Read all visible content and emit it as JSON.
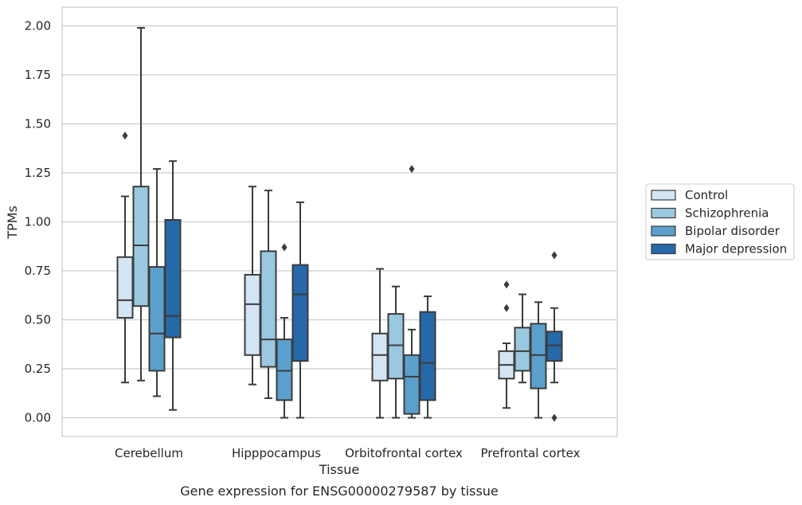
{
  "chart_data": {
    "type": "box",
    "caption": "Gene expression for ENSG00000279587 by tissue",
    "xlabel": "Tissue",
    "ylabel": "TPMs",
    "ylim": [
      -0.1,
      2.09
    ],
    "yticks": [
      "0.00",
      "0.25",
      "0.50",
      "0.75",
      "1.00",
      "1.25",
      "1.50",
      "1.75",
      "2.00"
    ],
    "grid": "horizontal",
    "legend_position": "right",
    "categories": [
      "Cerebellum",
      "Hipppocampus",
      "Orbitofrontal cortex",
      "Prefrontal cortex"
    ],
    "series": [
      {
        "name": "Control",
        "color": "#d3e4f3",
        "boxes": [
          {
            "whisker_low": 0.18,
            "q1": 0.51,
            "median": 0.6,
            "q3": 0.82,
            "whisker_high": 1.13,
            "outliers": [
              1.44
            ]
          },
          {
            "whisker_low": 0.17,
            "q1": 0.32,
            "median": 0.58,
            "q3": 0.73,
            "whisker_high": 1.18,
            "outliers": []
          },
          {
            "whisker_low": 0.0,
            "q1": 0.19,
            "median": 0.32,
            "q3": 0.43,
            "whisker_high": 0.76,
            "outliers": []
          },
          {
            "whisker_low": 0.05,
            "q1": 0.2,
            "median": 0.27,
            "q3": 0.34,
            "whisker_high": 0.38,
            "outliers": [
              0.56,
              0.68
            ]
          }
        ]
      },
      {
        "name": "Schizophrenia",
        "color": "#9ac8e0",
        "boxes": [
          {
            "whisker_low": 0.19,
            "q1": 0.57,
            "median": 0.88,
            "q3": 1.18,
            "whisker_high": 1.99,
            "outliers": []
          },
          {
            "whisker_low": 0.1,
            "q1": 0.26,
            "median": 0.4,
            "q3": 0.85,
            "whisker_high": 1.16,
            "outliers": []
          },
          {
            "whisker_low": 0.0,
            "q1": 0.2,
            "median": 0.37,
            "q3": 0.53,
            "whisker_high": 0.67,
            "outliers": []
          },
          {
            "whisker_low": 0.18,
            "q1": 0.24,
            "median": 0.34,
            "q3": 0.46,
            "whisker_high": 0.63,
            "outliers": []
          }
        ]
      },
      {
        "name": "Bipolar disorder",
        "color": "#5ba0cc",
        "boxes": [
          {
            "whisker_low": 0.11,
            "q1": 0.24,
            "median": 0.43,
            "q3": 0.77,
            "whisker_high": 1.27,
            "outliers": []
          },
          {
            "whisker_low": 0.0,
            "q1": 0.09,
            "median": 0.24,
            "q3": 0.4,
            "whisker_high": 0.51,
            "outliers": [
              0.87
            ]
          },
          {
            "whisker_low": 0.0,
            "q1": 0.02,
            "median": 0.21,
            "q3": 0.32,
            "whisker_high": 0.45,
            "outliers": [
              1.27
            ]
          },
          {
            "whisker_low": 0.0,
            "q1": 0.15,
            "median": 0.32,
            "q3": 0.48,
            "whisker_high": 0.59,
            "outliers": []
          }
        ]
      },
      {
        "name": "Major depression",
        "color": "#2669a9",
        "boxes": [
          {
            "whisker_low": 0.04,
            "q1": 0.41,
            "median": 0.52,
            "q3": 1.01,
            "whisker_high": 1.31,
            "outliers": []
          },
          {
            "whisker_low": 0.0,
            "q1": 0.29,
            "median": 0.63,
            "q3": 0.78,
            "whisker_high": 1.1,
            "outliers": []
          },
          {
            "whisker_low": 0.0,
            "q1": 0.09,
            "median": 0.28,
            "q3": 0.54,
            "whisker_high": 0.62,
            "outliers": []
          },
          {
            "whisker_low": 0.18,
            "q1": 0.29,
            "median": 0.37,
            "q3": 0.44,
            "whisker_high": 0.56,
            "outliers": [
              0.0,
              0.83
            ]
          }
        ]
      }
    ]
  }
}
